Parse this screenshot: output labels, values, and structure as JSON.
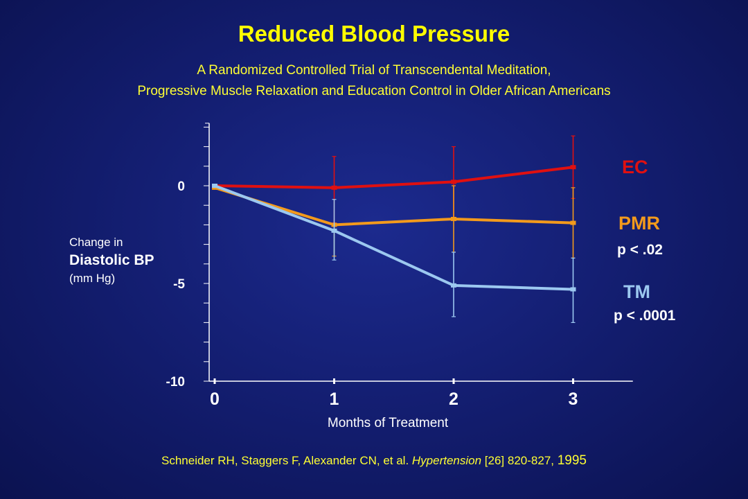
{
  "colors": {
    "title": "#ffff00",
    "ec": "#e01010",
    "pmr": "#f39a1c",
    "tm": "#9cc8f0",
    "axis": "#ffffff"
  },
  "chart_data": {
    "type": "line",
    "title": "Reduced Blood Pressure",
    "subtitle_lines": [
      "A Randomized Controlled Trial of Transcendental Meditation,",
      "Progressive Muscle Relaxation and Education Control in Older African Americans"
    ],
    "xlabel": "Months of Treatment",
    "ylabel_lines": [
      "Change in",
      "Diastolic BP",
      "(mm Hg)"
    ],
    "x": [
      0,
      1,
      2,
      3
    ],
    "x_tick_labels": [
      "0",
      "1",
      "2",
      "3"
    ],
    "y_tick_labels": [
      "0",
      "-5",
      "-10"
    ],
    "y_ticks": [
      0,
      -5,
      -10
    ],
    "ylim": [
      -10,
      3.2
    ],
    "xlim": [
      0,
      3.5
    ],
    "series": [
      {
        "name": "EC",
        "key": "ec",
        "values": [
          0,
          -0.1,
          0.2,
          0.95
        ],
        "err_upper": [
          0,
          1.6,
          1.8,
          1.6
        ],
        "err_lower": [
          0,
          1.8,
          1.9,
          1.6
        ]
      },
      {
        "name": "PMR",
        "key": "pmr",
        "values": [
          -0.1,
          -2.0,
          -1.7,
          -1.9
        ],
        "err_upper": [
          0,
          0,
          1.7,
          1.8
        ],
        "err_lower": [
          0,
          1.6,
          1.7,
          1.8
        ]
      },
      {
        "name": "TM",
        "key": "tm",
        "values": [
          0,
          -2.3,
          -5.1,
          -5.3
        ],
        "err_upper": [
          0,
          1.6,
          1.7,
          1.6
        ],
        "err_lower": [
          0,
          1.5,
          1.6,
          1.7
        ]
      }
    ],
    "annotations": {
      "pmr_p": "p < .02",
      "tm_p": "p < .0001"
    },
    "legend": "right, beside lines"
  },
  "citation": {
    "authors": "Schneider RH, Staggers F,  Alexander CN, et al. ",
    "journal": "Hypertension",
    "rest": " [26]  820-827, ",
    "year": "1995"
  }
}
